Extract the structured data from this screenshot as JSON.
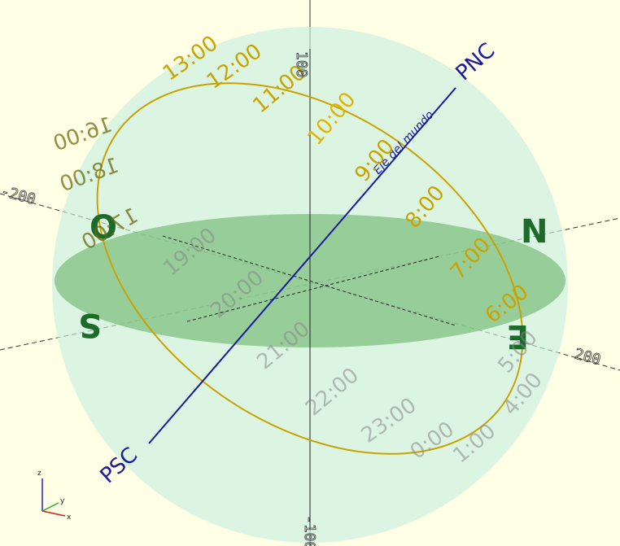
{
  "scene": {
    "background": "#ffffe5",
    "sphere_fill": "#c8f0e0",
    "horizon_fill": "#7fbf7f",
    "path_color": "#d4b000",
    "axis_color": "#1a1aa0"
  },
  "poles": {
    "north": "PNC",
    "south": "PSC",
    "axis_label": "Eje del mundo"
  },
  "cardinals": {
    "north": "N",
    "south": "S",
    "east": "E",
    "west": "O"
  },
  "hours": {
    "visible_labels": [
      "6:00",
      "7:00",
      "8:00",
      "9:00",
      "10:00",
      "11:00",
      "12:00",
      "13:00"
    ],
    "mirrored_labels": [
      "17:00",
      "18:00",
      "16:00"
    ],
    "below_horizon_labels": [
      "19:00",
      "20:00",
      "21:00",
      "22:00",
      "23:00",
      "0:00",
      "1:00",
      "5:00",
      "4:00"
    ]
  },
  "axis_ticks": {
    "z_top": "100",
    "z_bottom": "-100",
    "y_left": "-200",
    "x_right": "200"
  },
  "orientation": {
    "x": "x",
    "y": "y",
    "z": "z"
  }
}
